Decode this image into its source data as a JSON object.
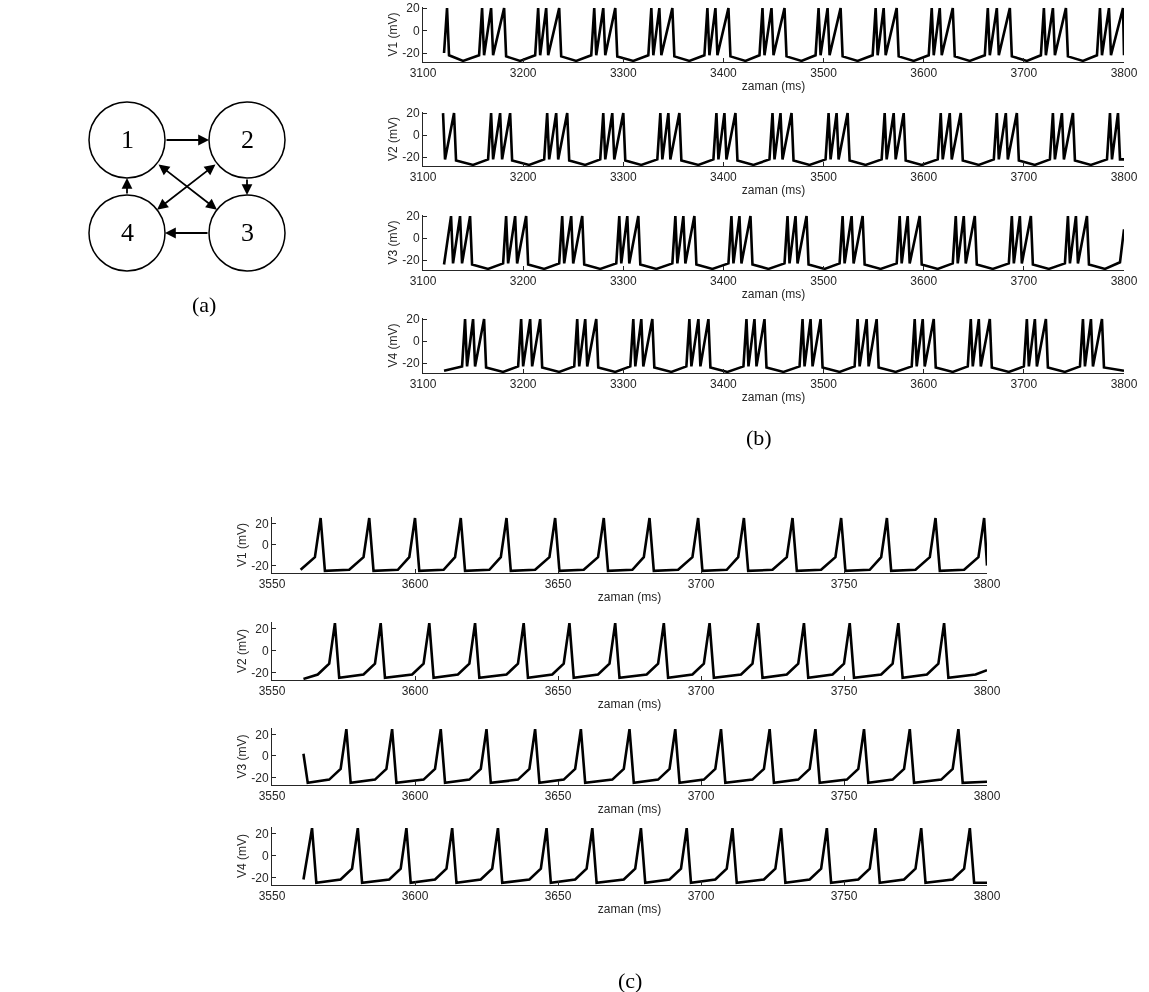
{
  "chart_data": [
    {
      "type": "other",
      "annotations": [
        "1",
        "2",
        "3",
        "4",
        "(a)"
      ]
    },
    {
      "type": "line",
      "xlabel": "zaman (ms)",
      "ylabel": "V1 (mV)",
      "xlim": [
        3100,
        3800
      ],
      "xticks": [
        3100,
        3200,
        3300,
        3400,
        3500,
        3600,
        3700,
        3800
      ],
      "ylim": [
        -28,
        21
      ],
      "yticks": [
        -20,
        0,
        20
      ],
      "x": [
        3121,
        3124,
        3126,
        3140,
        3156,
        3159,
        3161,
        3168,
        3170,
        3181,
        3183,
        3197,
        3212,
        3215,
        3217,
        3223,
        3225,
        3236,
        3238,
        3253,
        3268,
        3271,
        3273,
        3280,
        3282,
        3292,
        3294,
        3310,
        3325,
        3328,
        3330,
        3336,
        3338,
        3349,
        3351,
        3366,
        3381,
        3384,
        3386,
        3392,
        3394,
        3405,
        3407,
        3422,
        3436,
        3439,
        3441,
        3448,
        3450,
        3461,
        3463,
        3478,
        3492,
        3495,
        3497,
        3504,
        3506,
        3517,
        3519,
        3534,
        3549,
        3552,
        3554,
        3560,
        3562,
        3573,
        3575,
        3590,
        3605,
        3608,
        3610,
        3616,
        3618,
        3629,
        3631,
        3646,
        3661,
        3664,
        3666,
        3673,
        3675,
        3686,
        3688,
        3703,
        3717,
        3720,
        3722,
        3729,
        3731,
        3742,
        3744,
        3759,
        3773,
        3776,
        3778,
        3785,
        3787,
        3799,
        3800
      ],
      "series": [
        {
          "color": "#000000",
          "values": [
            -20,
            20,
            -22,
            -27,
            -22,
            20,
            -22,
            20,
            -22,
            20,
            -23,
            -27,
            -22,
            20,
            -22,
            20,
            -22,
            20,
            -23,
            -27,
            -22,
            20,
            -22,
            20,
            -22,
            20,
            -23,
            -27,
            -22,
            20,
            -22,
            20,
            -22,
            20,
            -23,
            -27,
            -22,
            20,
            -22,
            20,
            -22,
            20,
            -23,
            -27,
            -22,
            20,
            -22,
            20,
            -22,
            20,
            -23,
            -27,
            -22,
            20,
            -22,
            20,
            -22,
            20,
            -23,
            -27,
            -22,
            20,
            -22,
            20,
            -22,
            20,
            -23,
            -27,
            -22,
            20,
            -22,
            20,
            -22,
            20,
            -23,
            -27,
            -22,
            20,
            -22,
            20,
            -22,
            20,
            -23,
            -27,
            -22,
            20,
            -22,
            20,
            -22,
            20,
            -23,
            -27,
            -22,
            20,
            -22,
            20,
            -22,
            20,
            -22
          ]
        }
      ]
    },
    {
      "type": "line",
      "xlabel": "zaman (ms)",
      "ylabel": "V2 (mV)",
      "xlim": [
        3100,
        3800
      ],
      "xticks": [
        3100,
        3200,
        3300,
        3400,
        3500,
        3600,
        3700,
        3800
      ],
      "ylim": [
        -28,
        21
      ],
      "yticks": [
        -20,
        0,
        20
      ],
      "x": [
        3120,
        3122,
        3131,
        3133,
        3150,
        3165,
        3168,
        3170,
        3177,
        3179,
        3187,
        3189,
        3206,
        3221,
        3224,
        3226,
        3233,
        3235,
        3244,
        3246,
        3262,
        3277,
        3280,
        3282,
        3289,
        3291,
        3300,
        3302,
        3318,
        3334,
        3337,
        3339,
        3345,
        3347,
        3356,
        3358,
        3375,
        3390,
        3393,
        3395,
        3401,
        3403,
        3412,
        3414,
        3430,
        3446,
        3449,
        3451,
        3457,
        3459,
        3468,
        3470,
        3486,
        3502,
        3505,
        3507,
        3513,
        3515,
        3524,
        3526,
        3542,
        3558,
        3561,
        3563,
        3570,
        3572,
        3580,
        3582,
        3598,
        3614,
        3617,
        3619,
        3626,
        3628,
        3637,
        3639,
        3655,
        3670,
        3673,
        3675,
        3682,
        3684,
        3693,
        3695,
        3711,
        3726,
        3729,
        3731,
        3738,
        3740,
        3749,
        3751,
        3767,
        3783,
        3786,
        3788,
        3794,
        3796,
        3800
      ],
      "series": [
        {
          "color": "#000000",
          "values": [
            20,
            -22,
            20,
            -23,
            -27,
            -22,
            20,
            -22,
            20,
            -22,
            20,
            -23,
            -27,
            -22,
            20,
            -22,
            20,
            -22,
            20,
            -23,
            -27,
            -22,
            20,
            -22,
            20,
            -22,
            20,
            -23,
            -27,
            -22,
            20,
            -22,
            20,
            -22,
            20,
            -23,
            -27,
            -22,
            20,
            -22,
            20,
            -22,
            20,
            -23,
            -27,
            -22,
            20,
            -22,
            20,
            -22,
            20,
            -23,
            -27,
            -22,
            20,
            -22,
            20,
            -22,
            20,
            -23,
            -27,
            -22,
            20,
            -22,
            20,
            -22,
            20,
            -23,
            -27,
            -22,
            20,
            -22,
            20,
            -22,
            20,
            -23,
            -27,
            -22,
            20,
            -22,
            20,
            -22,
            20,
            -23,
            -27,
            -22,
            20,
            -22,
            20,
            -22,
            20,
            -23,
            -27,
            -22,
            20,
            -22,
            20,
            -22,
            -22
          ]
        }
      ]
    },
    {
      "type": "line",
      "xlabel": "zaman (ms)",
      "ylabel": "V3 (mV)",
      "xlim": [
        3100,
        3800
      ],
      "xticks": [
        3100,
        3200,
        3300,
        3400,
        3500,
        3600,
        3700,
        3800
      ],
      "ylim": [
        -29,
        21
      ],
      "yticks": [
        -20,
        0,
        20
      ],
      "x": [
        3121,
        3128,
        3130,
        3137,
        3139,
        3147,
        3149,
        3165,
        3180,
        3183,
        3185,
        3192,
        3194,
        3203,
        3205,
        3221,
        3236,
        3239,
        3241,
        3248,
        3250,
        3259,
        3261,
        3277,
        3293,
        3296,
        3298,
        3304,
        3306,
        3315,
        3317,
        3333,
        3349,
        3352,
        3354,
        3360,
        3362,
        3371,
        3373,
        3389,
        3405,
        3408,
        3410,
        3416,
        3418,
        3427,
        3429,
        3445,
        3461,
        3464,
        3466,
        3472,
        3474,
        3483,
        3485,
        3501,
        3516,
        3519,
        3521,
        3528,
        3530,
        3539,
        3541,
        3557,
        3573,
        3576,
        3578,
        3584,
        3586,
        3596,
        3598,
        3614,
        3629,
        3632,
        3634,
        3640,
        3642,
        3651,
        3653,
        3669,
        3685,
        3688,
        3690,
        3696,
        3698,
        3707,
        3709,
        3725,
        3741,
        3744,
        3746,
        3752,
        3754,
        3763,
        3765,
        3781,
        3796,
        3800
      ],
      "series": [
        {
          "color": "#000000",
          "values": [
            -24,
            20,
            -23,
            20,
            -23,
            20,
            -24,
            -28,
            -23,
            20,
            -23,
            20,
            -23,
            20,
            -24,
            -28,
            -23,
            20,
            -23,
            20,
            -23,
            20,
            -24,
            -28,
            -23,
            20,
            -23,
            20,
            -23,
            20,
            -24,
            -28,
            -23,
            20,
            -23,
            20,
            -23,
            20,
            -24,
            -28,
            -23,
            20,
            -23,
            20,
            -23,
            20,
            -24,
            -28,
            -23,
            20,
            -23,
            20,
            -23,
            20,
            -24,
            -28,
            -23,
            20,
            -23,
            20,
            -23,
            20,
            -24,
            -28,
            -23,
            20,
            -23,
            20,
            -23,
            20,
            -24,
            -28,
            -23,
            20,
            -23,
            20,
            -23,
            20,
            -24,
            -28,
            -23,
            20,
            -23,
            20,
            -23,
            20,
            -24,
            -28,
            -23,
            20,
            -23,
            20,
            -23,
            20,
            -24,
            -28,
            -22,
            8
          ]
        }
      ]
    },
    {
      "type": "line",
      "xlabel": "zaman (ms)",
      "ylabel": "V4 (mV)",
      "xlim": [
        3100,
        3800
      ],
      "xticks": [
        3100,
        3200,
        3300,
        3400,
        3500,
        3600,
        3700,
        3800
      ],
      "ylim": [
        -29,
        21
      ],
      "yticks": [
        -20,
        0,
        20
      ],
      "annotations": [
        "(b)"
      ],
      "x": [
        3121,
        3139,
        3142,
        3144,
        3150,
        3152,
        3161,
        3163,
        3180,
        3195,
        3198,
        3200,
        3207,
        3209,
        3217,
        3219,
        3236,
        3251,
        3254,
        3256,
        3262,
        3264,
        3273,
        3275,
        3292,
        3307,
        3310,
        3312,
        3318,
        3320,
        3329,
        3331,
        3348,
        3363,
        3366,
        3368,
        3375,
        3377,
        3385,
        3387,
        3404,
        3420,
        3423,
        3425,
        3431,
        3433,
        3441,
        3443,
        3460,
        3476,
        3479,
        3481,
        3487,
        3489,
        3497,
        3499,
        3516,
        3531,
        3534,
        3536,
        3543,
        3545,
        3553,
        3555,
        3572,
        3588,
        3591,
        3593,
        3599,
        3601,
        3610,
        3612,
        3629,
        3644,
        3647,
        3649,
        3655,
        3657,
        3666,
        3668,
        3685,
        3700,
        3703,
        3705,
        3711,
        3713,
        3722,
        3724,
        3741,
        3756,
        3759,
        3761,
        3767,
        3769,
        3778,
        3780,
        3800
      ],
      "series": [
        {
          "color": "#000000",
          "values": [
            -27,
            -23,
            20,
            -23,
            20,
            -23,
            20,
            -24,
            -28,
            -23,
            20,
            -23,
            20,
            -23,
            20,
            -24,
            -28,
            -23,
            20,
            -23,
            20,
            -23,
            20,
            -24,
            -28,
            -23,
            20,
            -23,
            20,
            -23,
            20,
            -24,
            -28,
            -23,
            20,
            -23,
            20,
            -23,
            20,
            -24,
            -28,
            -23,
            20,
            -23,
            20,
            -23,
            20,
            -24,
            -28,
            -23,
            20,
            -23,
            20,
            -23,
            20,
            -24,
            -28,
            -23,
            20,
            -23,
            20,
            -23,
            20,
            -24,
            -28,
            -23,
            20,
            -23,
            20,
            -23,
            20,
            -24,
            -28,
            -23,
            20,
            -23,
            20,
            -23,
            20,
            -24,
            -28,
            -23,
            20,
            -23,
            20,
            -23,
            20,
            -24,
            -28,
            -23,
            20,
            -23,
            20,
            -23,
            20,
            -24,
            -27
          ]
        }
      ]
    },
    {
      "type": "line",
      "xlabel": "zaman (ms)",
      "ylabel": "V1 (mV)",
      "xlim": [
        3550,
        3800
      ],
      "xticks": [
        3550,
        3600,
        3650,
        3700,
        3750,
        3800
      ],
      "ylim": [
        -27,
        26
      ],
      "yticks": [
        -20,
        0,
        20
      ],
      "x": [
        3560,
        3565,
        3567,
        3568.5,
        3577,
        3582,
        3584,
        3585.5,
        3594,
        3598,
        3600,
        3601.5,
        3610,
        3614,
        3616,
        3617.5,
        3626,
        3630,
        3632,
        3633.5,
        3642,
        3647,
        3649,
        3650.5,
        3659,
        3664,
        3666,
        3667.5,
        3676,
        3680,
        3682,
        3683.5,
        3692,
        3697,
        3699,
        3700.5,
        3709,
        3713,
        3715,
        3716.5,
        3725,
        3730,
        3732,
        3733.5,
        3742,
        3747,
        3749,
        3750.5,
        3759,
        3763,
        3765,
        3766.5,
        3775,
        3780,
        3782,
        3783.5,
        3792,
        3797,
        3799,
        3800
      ],
      "series": [
        {
          "color": "#000000",
          "values": [
            -24,
            -12,
            25,
            -25,
            -24,
            -12,
            25,
            -25,
            -24,
            -12,
            25,
            -25,
            -24,
            -12,
            25,
            -25,
            -24,
            -12,
            25,
            -25,
            -24,
            -12,
            25,
            -25,
            -24,
            -12,
            25,
            -25,
            -24,
            -12,
            25,
            -25,
            -24,
            -12,
            25,
            -25,
            -24,
            -12,
            25,
            -25,
            -24,
            -12,
            25,
            -25,
            -24,
            -12,
            25,
            -25,
            -24,
            -12,
            25,
            -25,
            -24,
            -12,
            25,
            -25,
            -24,
            -12,
            25,
            -20
          ]
        }
      ]
    },
    {
      "type": "line",
      "xlabel": "zaman (ms)",
      "ylabel": "V2 (mV)",
      "xlim": [
        3550,
        3800
      ],
      "xticks": [
        3550,
        3600,
        3650,
        3700,
        3750,
        3800
      ],
      "ylim": [
        -27,
        26
      ],
      "yticks": [
        -20,
        0,
        20
      ],
      "x": [
        3561,
        3566,
        3570,
        3572,
        3573.5,
        3582,
        3586,
        3588,
        3589.5,
        3599,
        3603,
        3605,
        3606.5,
        3615,
        3619,
        3621,
        3622.5,
        3632,
        3636,
        3638,
        3639.5,
        3648,
        3652,
        3654,
        3655.5,
        3664,
        3668,
        3670,
        3671.5,
        3681,
        3685,
        3687,
        3688.5,
        3697,
        3701,
        3703,
        3704.5,
        3714,
        3718,
        3720,
        3721.5,
        3730,
        3734,
        3736,
        3737.5,
        3746,
        3750,
        3752,
        3753.5,
        3763,
        3767,
        3769,
        3770.5,
        3779,
        3783,
        3785,
        3786.5,
        3796,
        3800
      ],
      "series": [
        {
          "color": "#000000",
          "values": [
            -26,
            -22,
            -12,
            25,
            -25,
            -22,
            -12,
            25,
            -25,
            -22,
            -12,
            25,
            -25,
            -22,
            -12,
            25,
            -25,
            -22,
            -12,
            25,
            -25,
            -22,
            -12,
            25,
            -25,
            -22,
            -12,
            25,
            -25,
            -22,
            -12,
            25,
            -25,
            -22,
            -12,
            25,
            -25,
            -22,
            -12,
            25,
            -25,
            -22,
            -12,
            25,
            -25,
            -22,
            -12,
            25,
            -25,
            -22,
            -12,
            25,
            -25,
            -22,
            -12,
            25,
            -25,
            -22,
            -18
          ]
        }
      ]
    },
    {
      "type": "line",
      "xlabel": "zaman (ms)",
      "ylabel": "V3 (mV)",
      "xlim": [
        3550,
        3800
      ],
      "xticks": [
        3550,
        3600,
        3650,
        3700,
        3750,
        3800
      ],
      "ylim": [
        -27,
        26
      ],
      "yticks": [
        -20,
        0,
        20
      ],
      "x": [
        3561,
        3562.5,
        3570,
        3574,
        3576,
        3577.5,
        3586,
        3590,
        3592,
        3593.5,
        3603,
        3607,
        3609,
        3610.5,
        3619,
        3623,
        3625,
        3626.5,
        3636,
        3640,
        3642,
        3643.5,
        3652,
        3656,
        3658,
        3659.5,
        3669,
        3673,
        3675,
        3676.5,
        3685,
        3689,
        3691,
        3692.5,
        3701,
        3705,
        3707,
        3708.5,
        3718,
        3722,
        3724,
        3725.5,
        3734,
        3738,
        3740,
        3741.5,
        3751,
        3755,
        3757,
        3758.5,
        3767,
        3771,
        3773,
        3774.5,
        3784,
        3788,
        3790,
        3791.5,
        3800
      ],
      "series": [
        {
          "color": "#000000",
          "values": [
            2,
            -25,
            -22,
            -12,
            25,
            -25,
            -22,
            -12,
            25,
            -25,
            -22,
            -12,
            25,
            -25,
            -22,
            -12,
            25,
            -25,
            -22,
            -12,
            25,
            -25,
            -22,
            -12,
            25,
            -25,
            -22,
            -12,
            25,
            -25,
            -22,
            -12,
            25,
            -25,
            -22,
            -12,
            25,
            -25,
            -22,
            -12,
            25,
            -25,
            -22,
            -12,
            25,
            -25,
            -22,
            -12,
            25,
            -25,
            -22,
            -12,
            25,
            -25,
            -22,
            -12,
            25,
            -25,
            -24
          ]
        }
      ]
    },
    {
      "type": "line",
      "xlabel": "zaman (ms)",
      "ylabel": "V4 (mV)",
      "xlim": [
        3550,
        3800
      ],
      "xticks": [
        3550,
        3600,
        3650,
        3700,
        3750,
        3800
      ],
      "ylim": [
        -27,
        26
      ],
      "yticks": [
        -20,
        0,
        20
      ],
      "annotations": [
        "(c)"
      ],
      "x": [
        3561,
        3564,
        3565.5,
        3574,
        3578,
        3580,
        3581.5,
        3591,
        3595,
        3597,
        3598.5,
        3607,
        3611,
        3613,
        3614.5,
        3623,
        3627,
        3629,
        3630.5,
        3640,
        3644,
        3646,
        3647.5,
        3656,
        3660,
        3662,
        3663.5,
        3673,
        3677,
        3679,
        3680.5,
        3689,
        3693,
        3695,
        3696.5,
        3705,
        3709,
        3711,
        3712.5,
        3722,
        3726,
        3728,
        3729.5,
        3738,
        3742,
        3744,
        3745.5,
        3755,
        3759,
        3761,
        3762.5,
        3771,
        3775,
        3777,
        3778.5,
        3788,
        3792,
        3794,
        3795.5,
        3800
      ],
      "series": [
        {
          "color": "#000000",
          "values": [
            -22,
            25,
            -25,
            -22,
            -12,
            25,
            -25,
            -22,
            -12,
            25,
            -25,
            -22,
            -12,
            25,
            -25,
            -22,
            -12,
            25,
            -25,
            -22,
            -12,
            25,
            -25,
            -22,
            -12,
            25,
            -25,
            -22,
            -12,
            25,
            -25,
            -22,
            -12,
            25,
            -25,
            -22,
            -12,
            25,
            -25,
            -22,
            -12,
            25,
            -25,
            -22,
            -12,
            25,
            -25,
            -22,
            -12,
            25,
            -25,
            -22,
            -12,
            25,
            -25,
            -22,
            -12,
            25,
            -25,
            -25
          ]
        }
      ]
    }
  ]
}
